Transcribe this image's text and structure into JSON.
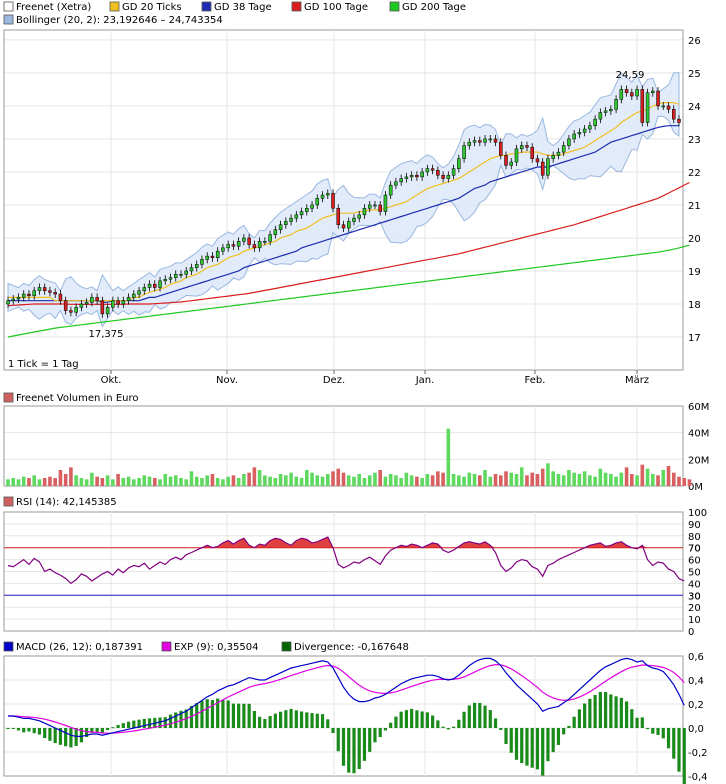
{
  "chart_data": [
    {
      "type": "candlestick",
      "legend": {
        "row1": [
          {
            "label": "Freenet (Xetra)",
            "color": "#ffffff"
          },
          {
            "label": "GD 20 Ticks",
            "color": "#f0c020"
          },
          {
            "label": "GD 38 Tage",
            "color": "#1c2db0"
          },
          {
            "label": "GD 100 Tage",
            "color": "#d81e1e"
          },
          {
            "label": "GD 200 Tage",
            "color": "#1fc81f"
          }
        ],
        "row2": {
          "label": "Bollinger (20, 2): 23,192646 – 24,743354",
          "color": "#9ab8e0"
        }
      },
      "ylim": [
        16,
        26.3
      ],
      "y_ticks": [
        "26",
        "25",
        "24",
        "23",
        "22",
        "21",
        "20",
        "19",
        "18",
        "17"
      ],
      "x_ticks": [
        "Okt.",
        "Nov.",
        "Dez.",
        "Jan.",
        "Feb.",
        "März"
      ],
      "annotations": {
        "high": "24,59",
        "low": "17,375",
        "note": "1 Tick = 1 Tag"
      },
      "ohlc": {
        "close": [
          18.1,
          18.15,
          18.2,
          18.3,
          18.25,
          18.4,
          18.5,
          18.4,
          18.35,
          18.3,
          18.1,
          17.8,
          17.75,
          17.9,
          18.0,
          18.05,
          18.2,
          18.1,
          17.7,
          17.9,
          18.1,
          18.0,
          18.1,
          18.2,
          18.3,
          18.4,
          18.5,
          18.6,
          18.5,
          18.7,
          18.75,
          18.8,
          18.9,
          18.9,
          19.0,
          19.1,
          19.2,
          19.35,
          19.45,
          19.4,
          19.6,
          19.7,
          19.8,
          19.75,
          19.9,
          20.0,
          19.8,
          19.7,
          19.9,
          19.9,
          20.1,
          20.25,
          20.4,
          20.5,
          20.6,
          20.7,
          20.8,
          20.9,
          21.0,
          21.2,
          21.3,
          21.35,
          20.9,
          20.4,
          20.3,
          20.5,
          20.6,
          20.7,
          20.9,
          21.0,
          21.0,
          20.8,
          21.3,
          21.6,
          21.7,
          21.8,
          21.85,
          21.9,
          21.85,
          22.0,
          22.1,
          22.05,
          21.9,
          21.8,
          21.9,
          22.1,
          22.4,
          22.8,
          22.9,
          22.95,
          22.9,
          23.0,
          23.0,
          22.9,
          22.5,
          22.2,
          22.3,
          22.7,
          22.8,
          22.75,
          22.4,
          22.3,
          21.9,
          22.4,
          22.5,
          22.6,
          22.8,
          23.0,
          23.15,
          23.2,
          23.3,
          23.4,
          23.6,
          23.8,
          23.85,
          23.9,
          24.2,
          24.5,
          24.4,
          24.3,
          24.5,
          23.5,
          24.4,
          24.45,
          24.0,
          24.0,
          23.9,
          23.6,
          23.5
        ],
        "open": [
          18.0,
          18.1,
          18.15,
          18.2,
          18.3,
          18.25,
          18.4,
          18.5,
          18.4,
          18.35,
          18.3,
          18.1,
          17.8,
          17.75,
          17.9,
          18.0,
          18.05,
          18.2,
          18.1,
          17.7,
          17.9,
          18.1,
          18.0,
          18.1,
          18.2,
          18.3,
          18.4,
          18.5,
          18.6,
          18.5,
          18.7,
          18.75,
          18.8,
          18.9,
          18.9,
          19.0,
          19.1,
          19.2,
          19.35,
          19.45,
          19.4,
          19.6,
          19.7,
          19.8,
          19.75,
          19.9,
          20.0,
          19.8,
          19.7,
          19.9,
          19.9,
          20.1,
          20.25,
          20.4,
          20.5,
          20.6,
          20.7,
          20.8,
          20.9,
          21.0,
          21.2,
          21.3,
          21.35,
          20.9,
          20.4,
          20.3,
          20.5,
          20.6,
          20.7,
          20.9,
          21.0,
          21.0,
          20.8,
          21.3,
          21.6,
          21.7,
          21.8,
          21.85,
          21.9,
          21.85,
          22.0,
          22.1,
          22.05,
          21.9,
          21.8,
          21.9,
          22.1,
          22.4,
          22.8,
          22.9,
          22.95,
          22.9,
          23.0,
          23.0,
          22.9,
          22.5,
          22.2,
          22.3,
          22.7,
          22.8,
          22.75,
          22.4,
          22.3,
          21.9,
          22.4,
          22.5,
          22.6,
          22.8,
          23.0,
          23.15,
          23.2,
          23.3,
          23.4,
          23.6,
          23.8,
          23.85,
          23.9,
          24.2,
          24.5,
          24.4,
          24.3,
          24.5,
          23.5,
          24.4,
          24.45,
          24.0,
          24.0,
          23.9,
          23.6
        ]
      },
      "gd20": [
        18.2,
        18.2,
        18.2,
        18.2,
        18.2,
        18.2,
        18.2,
        18.2,
        18.2,
        18.1,
        18.1,
        18.1,
        18.1,
        18.1,
        18.1,
        18.1,
        18.1,
        18.1,
        18.1,
        18.1,
        18.1,
        18.1,
        18.1,
        18.1,
        18.2,
        18.2,
        18.3,
        18.35,
        18.4,
        18.45,
        18.5,
        18.6,
        18.65,
        18.7,
        18.8,
        18.85,
        18.9,
        19.0,
        19.1,
        19.15,
        19.2,
        19.3,
        19.4,
        19.45,
        19.5,
        19.6,
        19.65,
        19.7,
        19.75,
        19.8,
        19.85,
        19.9,
        20.0,
        20.05,
        20.1,
        20.2,
        20.25,
        20.3,
        20.4,
        20.5,
        20.6,
        20.65,
        20.7,
        20.75,
        20.75,
        20.75,
        20.75,
        20.8,
        20.8,
        20.85,
        20.85,
        20.85,
        20.9,
        20.95,
        21.0,
        21.05,
        21.1,
        21.2,
        21.3,
        21.4,
        21.5,
        21.55,
        21.6,
        21.65,
        21.7,
        21.75,
        21.8,
        21.9,
        22.0,
        22.1,
        22.2,
        22.3,
        22.4,
        22.45,
        22.5,
        22.5,
        22.55,
        22.55,
        22.6,
        22.6,
        22.6,
        22.6,
        22.55,
        22.5,
        22.5,
        22.5,
        22.55,
        22.6,
        22.65,
        22.7,
        22.75,
        22.85,
        22.95,
        23.05,
        23.15,
        23.25,
        23.35,
        23.5,
        23.6,
        23.7,
        23.8,
        23.85,
        23.9,
        24.0,
        24.05,
        24.1,
        24.1,
        24.1,
        24.05
      ],
      "gd38": [
        18.1,
        18.1,
        18.1,
        18.1,
        18.1,
        18.1,
        18.1,
        18.1,
        18.1,
        18.1,
        18.1,
        18.1,
        18.1,
        18.1,
        18.1,
        18.1,
        18.1,
        18.1,
        18.05,
        18.05,
        18.1,
        18.1,
        18.1,
        18.1,
        18.1,
        18.1,
        18.15,
        18.2,
        18.2,
        18.25,
        18.3,
        18.35,
        18.4,
        18.45,
        18.5,
        18.55,
        18.6,
        18.65,
        18.7,
        18.75,
        18.8,
        18.85,
        18.9,
        18.95,
        19.0,
        19.1,
        19.15,
        19.2,
        19.25,
        19.3,
        19.35,
        19.4,
        19.45,
        19.5,
        19.55,
        19.6,
        19.7,
        19.75,
        19.8,
        19.85,
        19.9,
        19.95,
        20.0,
        20.05,
        20.1,
        20.15,
        20.2,
        20.25,
        20.3,
        20.35,
        20.4,
        20.45,
        20.5,
        20.55,
        20.6,
        20.65,
        20.7,
        20.75,
        20.8,
        20.85,
        20.9,
        20.95,
        21.0,
        21.05,
        21.1,
        21.15,
        21.2,
        21.3,
        21.4,
        21.5,
        21.55,
        21.6,
        21.7,
        21.75,
        21.8,
        21.85,
        21.9,
        21.95,
        22.0,
        22.05,
        22.1,
        22.15,
        22.15,
        22.15,
        22.2,
        22.25,
        22.3,
        22.35,
        22.4,
        22.45,
        22.5,
        22.55,
        22.6,
        22.7,
        22.8,
        22.9,
        22.95,
        23.0,
        23.05,
        23.1,
        23.15,
        23.2,
        23.25,
        23.3,
        23.35,
        23.38,
        23.4,
        23.4,
        23.4
      ],
      "gd100": [
        17.95,
        17.96,
        17.97,
        17.98,
        17.99,
        18.0,
        18.0,
        18.0,
        18.0,
        18.0,
        18.0,
        18.0,
        17.99,
        17.99,
        17.99,
        17.99,
        17.99,
        17.99,
        17.99,
        17.99,
        17.99,
        17.99,
        17.99,
        18.0,
        18.0,
        18.0,
        18.0,
        18.0,
        18.01,
        18.02,
        18.03,
        18.04,
        18.05,
        18.06,
        18.08,
        18.1,
        18.12,
        18.14,
        18.16,
        18.18,
        18.2,
        18.22,
        18.24,
        18.26,
        18.28,
        18.3,
        18.32,
        18.35,
        18.38,
        18.41,
        18.44,
        18.47,
        18.5,
        18.53,
        18.56,
        18.59,
        18.62,
        18.65,
        18.68,
        18.71,
        18.74,
        18.77,
        18.8,
        18.83,
        18.86,
        18.89,
        18.92,
        18.95,
        18.98,
        19.01,
        19.04,
        19.07,
        19.1,
        19.13,
        19.16,
        19.19,
        19.22,
        19.25,
        19.28,
        19.31,
        19.34,
        19.37,
        19.4,
        19.43,
        19.46,
        19.49,
        19.52,
        19.56,
        19.6,
        19.64,
        19.68,
        19.72,
        19.76,
        19.8,
        19.84,
        19.88,
        19.92,
        19.96,
        20.0,
        20.04,
        20.08,
        20.12,
        20.16,
        20.2,
        20.24,
        20.28,
        20.32,
        20.36,
        20.4,
        20.45,
        20.5,
        20.55,
        20.6,
        20.65,
        20.7,
        20.75,
        20.8,
        20.85,
        20.9,
        20.95,
        21.0,
        21.05,
        21.1,
        21.15,
        21.2,
        21.28,
        21.36,
        21.44,
        21.52,
        21.6,
        21.68
      ],
      "gd200": [
        17.0,
        17.03,
        17.06,
        17.09,
        17.12,
        17.15,
        17.18,
        17.21,
        17.24,
        17.27,
        17.29,
        17.31,
        17.33,
        17.35,
        17.37,
        17.39,
        17.41,
        17.43,
        17.45,
        17.47,
        17.49,
        17.51,
        17.53,
        17.55,
        17.57,
        17.59,
        17.61,
        17.63,
        17.65,
        17.67,
        17.69,
        17.71,
        17.73,
        17.75,
        17.77,
        17.79,
        17.81,
        17.83,
        17.85,
        17.87,
        17.89,
        17.91,
        17.93,
        17.95,
        17.97,
        17.99,
        18.01,
        18.03,
        18.05,
        18.07,
        18.09,
        18.11,
        18.13,
        18.15,
        18.17,
        18.19,
        18.21,
        18.23,
        18.25,
        18.27,
        18.29,
        18.31,
        18.33,
        18.35,
        18.37,
        18.39,
        18.41,
        18.43,
        18.45,
        18.47,
        18.49,
        18.51,
        18.53,
        18.55,
        18.57,
        18.59,
        18.61,
        18.63,
        18.65,
        18.67,
        18.69,
        18.71,
        18.73,
        18.75,
        18.77,
        18.79,
        18.81,
        18.83,
        18.85,
        18.87,
        18.89,
        18.91,
        18.93,
        18.95,
        18.97,
        18.99,
        19.01,
        19.03,
        19.05,
        19.07,
        19.09,
        19.11,
        19.13,
        19.15,
        19.17,
        19.19,
        19.21,
        19.23,
        19.25,
        19.27,
        19.29,
        19.31,
        19.33,
        19.35,
        19.37,
        19.39,
        19.41,
        19.43,
        19.45,
        19.47,
        19.49,
        19.51,
        19.53,
        19.55,
        19.57,
        19.6,
        19.63,
        19.66,
        19.7,
        19.74,
        19.78
      ]
    },
    {
      "type": "bar",
      "title": "Freenet Volumen in Euro",
      "ylim": [
        0,
        60
      ],
      "y_ticks": [
        "60M",
        "40M",
        "20M",
        "0M"
      ],
      "values": [
        5,
        6,
        5,
        7,
        6,
        8,
        5,
        6,
        7,
        6,
        12,
        9,
        14,
        8,
        6,
        5,
        10,
        7,
        6,
        8,
        5,
        9,
        6,
        7,
        5,
        6,
        8,
        7,
        6,
        5,
        9,
        7,
        8,
        6,
        5,
        11,
        7,
        6,
        8,
        9,
        6,
        5,
        7,
        8,
        6,
        9,
        10,
        14,
        12,
        8,
        7,
        6,
        9,
        8,
        10,
        7,
        6,
        12,
        10,
        8,
        7,
        9,
        11,
        13,
        10,
        8,
        7,
        9,
        6,
        8,
        10,
        12,
        7,
        9,
        8,
        6,
        10,
        8,
        7,
        6,
        9,
        8,
        11,
        10,
        43,
        9,
        8,
        7,
        10,
        9,
        8,
        12,
        7,
        9,
        8,
        11,
        10,
        9,
        14,
        8,
        10,
        9,
        13,
        17,
        11,
        9,
        8,
        12,
        10,
        9,
        11,
        8,
        7,
        13,
        10,
        9,
        7,
        10,
        14,
        9,
        8,
        16,
        13,
        9,
        8,
        12,
        15,
        10,
        7,
        6,
        5
      ]
    },
    {
      "type": "line",
      "title": "RSI (14): 42,145385",
      "ylim": [
        0,
        100
      ],
      "y_ticks": [
        "100",
        "90",
        "80",
        "70",
        "60",
        "50",
        "40",
        "30",
        "20",
        "10",
        "0"
      ],
      "ref_lines": [
        70,
        30
      ],
      "ref_labels": [
        "70",
        "30"
      ],
      "values": [
        55,
        54,
        57,
        60,
        56,
        61,
        58,
        50,
        52,
        49,
        47,
        44,
        40,
        43,
        48,
        46,
        42,
        45,
        48,
        50,
        47,
        52,
        49,
        53,
        55,
        54,
        57,
        52,
        55,
        58,
        56,
        60,
        62,
        60,
        64,
        66,
        68,
        70,
        72,
        70,
        71,
        74,
        76,
        73,
        76,
        78,
        72,
        70,
        73,
        72,
        76,
        78,
        77,
        74,
        72,
        76,
        78,
        77,
        74,
        75,
        77,
        79,
        70,
        56,
        53,
        55,
        58,
        57,
        60,
        62,
        59,
        56,
        63,
        68,
        70,
        72,
        71,
        73,
        72,
        70,
        72,
        74,
        73,
        68,
        66,
        68,
        71,
        74,
        75,
        74,
        73,
        75,
        72,
        66,
        55,
        50,
        53,
        58,
        60,
        59,
        54,
        52,
        46,
        55,
        57,
        60,
        62,
        64,
        66,
        68,
        70,
        72,
        73,
        74,
        71,
        72,
        74,
        75,
        72,
        70,
        69,
        72,
        60,
        55,
        58,
        57,
        52,
        50,
        44,
        42
      ]
    },
    {
      "type": "line",
      "legend": [
        {
          "label": "MACD (26, 12): 0,187391",
          "color": "#0000c8"
        },
        {
          "label": "EXP (9): 0,35504",
          "color": "#e000e0"
        },
        {
          "label": "Divergence: -0,167648",
          "color": "#006400"
        }
      ],
      "ylim": [
        -0.4,
        0.6
      ],
      "y_ticks": [
        "0,6",
        "0,4",
        "0,2",
        "0,0",
        "-0,2",
        "-0,4"
      ],
      "macd": [
        0.1,
        0.1,
        0.09,
        0.08,
        0.08,
        0.07,
        0.06,
        0.04,
        0.02,
        0.0,
        -0.02,
        -0.04,
        -0.06,
        -0.07,
        -0.07,
        -0.06,
        -0.05,
        -0.05,
        -0.06,
        -0.05,
        -0.04,
        -0.03,
        -0.02,
        -0.01,
        0.0,
        0.01,
        0.02,
        0.03,
        0.04,
        0.05,
        0.06,
        0.08,
        0.1,
        0.12,
        0.14,
        0.17,
        0.2,
        0.23,
        0.26,
        0.28,
        0.31,
        0.33,
        0.35,
        0.36,
        0.38,
        0.4,
        0.42,
        0.41,
        0.4,
        0.4,
        0.42,
        0.44,
        0.46,
        0.48,
        0.5,
        0.51,
        0.52,
        0.53,
        0.54,
        0.55,
        0.56,
        0.55,
        0.5,
        0.42,
        0.34,
        0.28,
        0.24,
        0.22,
        0.22,
        0.23,
        0.25,
        0.26,
        0.28,
        0.31,
        0.34,
        0.37,
        0.39,
        0.41,
        0.42,
        0.43,
        0.44,
        0.44,
        0.43,
        0.41,
        0.4,
        0.41,
        0.44,
        0.48,
        0.52,
        0.55,
        0.57,
        0.58,
        0.58,
        0.56,
        0.52,
        0.46,
        0.41,
        0.36,
        0.32,
        0.28,
        0.24,
        0.2,
        0.14,
        0.16,
        0.17,
        0.18,
        0.21,
        0.24,
        0.28,
        0.32,
        0.36,
        0.4,
        0.44,
        0.48,
        0.51,
        0.53,
        0.55,
        0.57,
        0.58,
        0.57,
        0.55,
        0.56,
        0.52,
        0.5,
        0.49,
        0.47,
        0.42,
        0.36,
        0.28,
        0.19
      ]
    }
  ]
}
